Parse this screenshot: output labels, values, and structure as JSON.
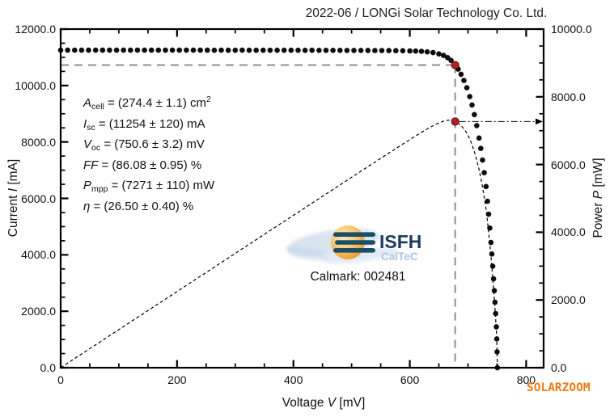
{
  "title": "2022-06 / LONGi Solar Technology Co. Ltd.",
  "watermark": "SOLARZOOM",
  "logo": {
    "brand": "ISFH",
    "sub": "CalTeC"
  },
  "calmark": "Calmark: 002481",
  "panel": {
    "params": [
      {
        "sym": "A",
        "sub": "cell",
        "rest": " = (274.4 ± 1.1) cm",
        "sup": "2"
      },
      {
        "sym": "I",
        "sub": "sc",
        "rest": " = (11254 ± 120) mA",
        "sup": ""
      },
      {
        "sym": "V",
        "sub": "oc",
        "rest": " = (750.6 ± 3.2) mV",
        "sup": ""
      },
      {
        "sym": "FF",
        "sub": "",
        "rest": " = (86.08 ± 0.95) %",
        "sup": ""
      },
      {
        "sym": "P",
        "sub": "mpp",
        "rest": " = (7271 ± 110) mW",
        "sup": ""
      },
      {
        "sym": "η",
        "sub": "",
        "rest": " = (26.50 ± 0.40) %",
        "sup": ""
      }
    ]
  },
  "chart_data": {
    "type": "scatter",
    "title": "2022-06 / LONGi Solar Technology Co. Ltd.",
    "x_axis": {
      "label_pre": "Voltage ",
      "label_sym": "V",
      "label_post": " [mV]",
      "ticks": [
        "0",
        "200",
        "400",
        "600",
        "800"
      ],
      "minor_step": 50,
      "range": [
        0,
        830
      ]
    },
    "y_left": {
      "label_pre": "Current ",
      "label_sym": "I",
      "label_post": " [mA]",
      "ticks": [
        "0.0",
        "2000.0",
        "4000.0",
        "6000.0",
        "8000.0",
        "10000.0",
        "12000.0"
      ],
      "minor_step": 500,
      "range": [
        0,
        12000
      ]
    },
    "y_right": {
      "label_pre": "Power ",
      "label_sym": "P",
      "label_post": " [mW]",
      "ticks": [
        "0.0",
        "2000.0",
        "4000.0",
        "6000.0",
        "8000.0",
        "10000.0"
      ],
      "minor_step": 500,
      "range": [
        0,
        10000
      ]
    },
    "series_notes": "iv_points are [voltage_mV, current_mA]; power curve P[mW]=V*I/1000 plotted on right axis",
    "iv_points": [
      [
        0,
        11253
      ],
      [
        12,
        11254
      ],
      [
        24,
        11254
      ],
      [
        36,
        11253
      ],
      [
        48,
        11255
      ],
      [
        60,
        11254
      ],
      [
        72,
        11253
      ],
      [
        84,
        11254
      ],
      [
        96,
        11253
      ],
      [
        108,
        11254
      ],
      [
        120,
        11253
      ],
      [
        132,
        11254
      ],
      [
        144,
        11253
      ],
      [
        156,
        11252
      ],
      [
        168,
        11253
      ],
      [
        180,
        11253
      ],
      [
        192,
        11252
      ],
      [
        204,
        11253
      ],
      [
        216,
        11252
      ],
      [
        228,
        11252
      ],
      [
        240,
        11253
      ],
      [
        252,
        11252
      ],
      [
        264,
        11251
      ],
      [
        276,
        11252
      ],
      [
        288,
        11251
      ],
      [
        300,
        11251
      ],
      [
        312,
        11252
      ],
      [
        324,
        11251
      ],
      [
        336,
        11250
      ],
      [
        348,
        11251
      ],
      [
        360,
        11250
      ],
      [
        372,
        11250
      ],
      [
        384,
        11249
      ],
      [
        396,
        11250
      ],
      [
        408,
        11249
      ],
      [
        420,
        11248
      ],
      [
        432,
        11249
      ],
      [
        444,
        11248
      ],
      [
        456,
        11247
      ],
      [
        468,
        11247
      ],
      [
        480,
        11246
      ],
      [
        492,
        11245
      ],
      [
        504,
        11245
      ],
      [
        516,
        11244
      ],
      [
        528,
        11243
      ],
      [
        540,
        11241
      ],
      [
        552,
        11240
      ],
      [
        564,
        11238
      ],
      [
        576,
        11236
      ],
      [
        588,
        11233
      ],
      [
        600,
        11228
      ],
      [
        610,
        11221
      ],
      [
        620,
        11210
      ],
      [
        630,
        11193
      ],
      [
        640,
        11166
      ],
      [
        650,
        11122
      ],
      [
        658,
        11066
      ],
      [
        665,
        10990
      ],
      [
        671,
        10890
      ],
      [
        678,
        10724
      ],
      [
        683,
        10580
      ],
      [
        688,
        10400
      ],
      [
        693,
        10180
      ],
      [
        698,
        9920
      ],
      [
        703,
        9610
      ],
      [
        707,
        9310
      ],
      [
        711,
        8970
      ],
      [
        715,
        8580
      ],
      [
        719,
        8140
      ],
      [
        722,
        7770
      ],
      [
        725,
        7360
      ],
      [
        728,
        6910
      ],
      [
        731,
        6420
      ],
      [
        733.5,
        5900
      ],
      [
        735.5,
        5440
      ],
      [
        737.5,
        4950
      ],
      [
        739.5,
        4440
      ],
      [
        741,
        4030
      ],
      [
        742.5,
        3600
      ],
      [
        744,
        3150
      ],
      [
        745.3,
        2730
      ],
      [
        746.5,
        2320
      ],
      [
        747.6,
        1920
      ],
      [
        748.8,
        1450
      ],
      [
        749.5,
        1020
      ],
      [
        750.1,
        560
      ],
      [
        750.6,
        0
      ]
    ],
    "mpp": {
      "v": 678,
      "i": 10724,
      "p": 7271
    },
    "key_values": {
      "isc_mA": 11254,
      "voc_mV": 750.6,
      "ff_pct": 86.08,
      "pmpp_mW": 7271,
      "eta_pct": 26.5,
      "area_cm2": 274.4
    },
    "legend": "none",
    "grid": false,
    "colors": {
      "points": "#0d0d0d",
      "mpp_marker": "#b02025",
      "mpp_marker_edge": "#5f0d10",
      "guide": "#8f8f8f",
      "watermark": "#ed7a12"
    }
  }
}
